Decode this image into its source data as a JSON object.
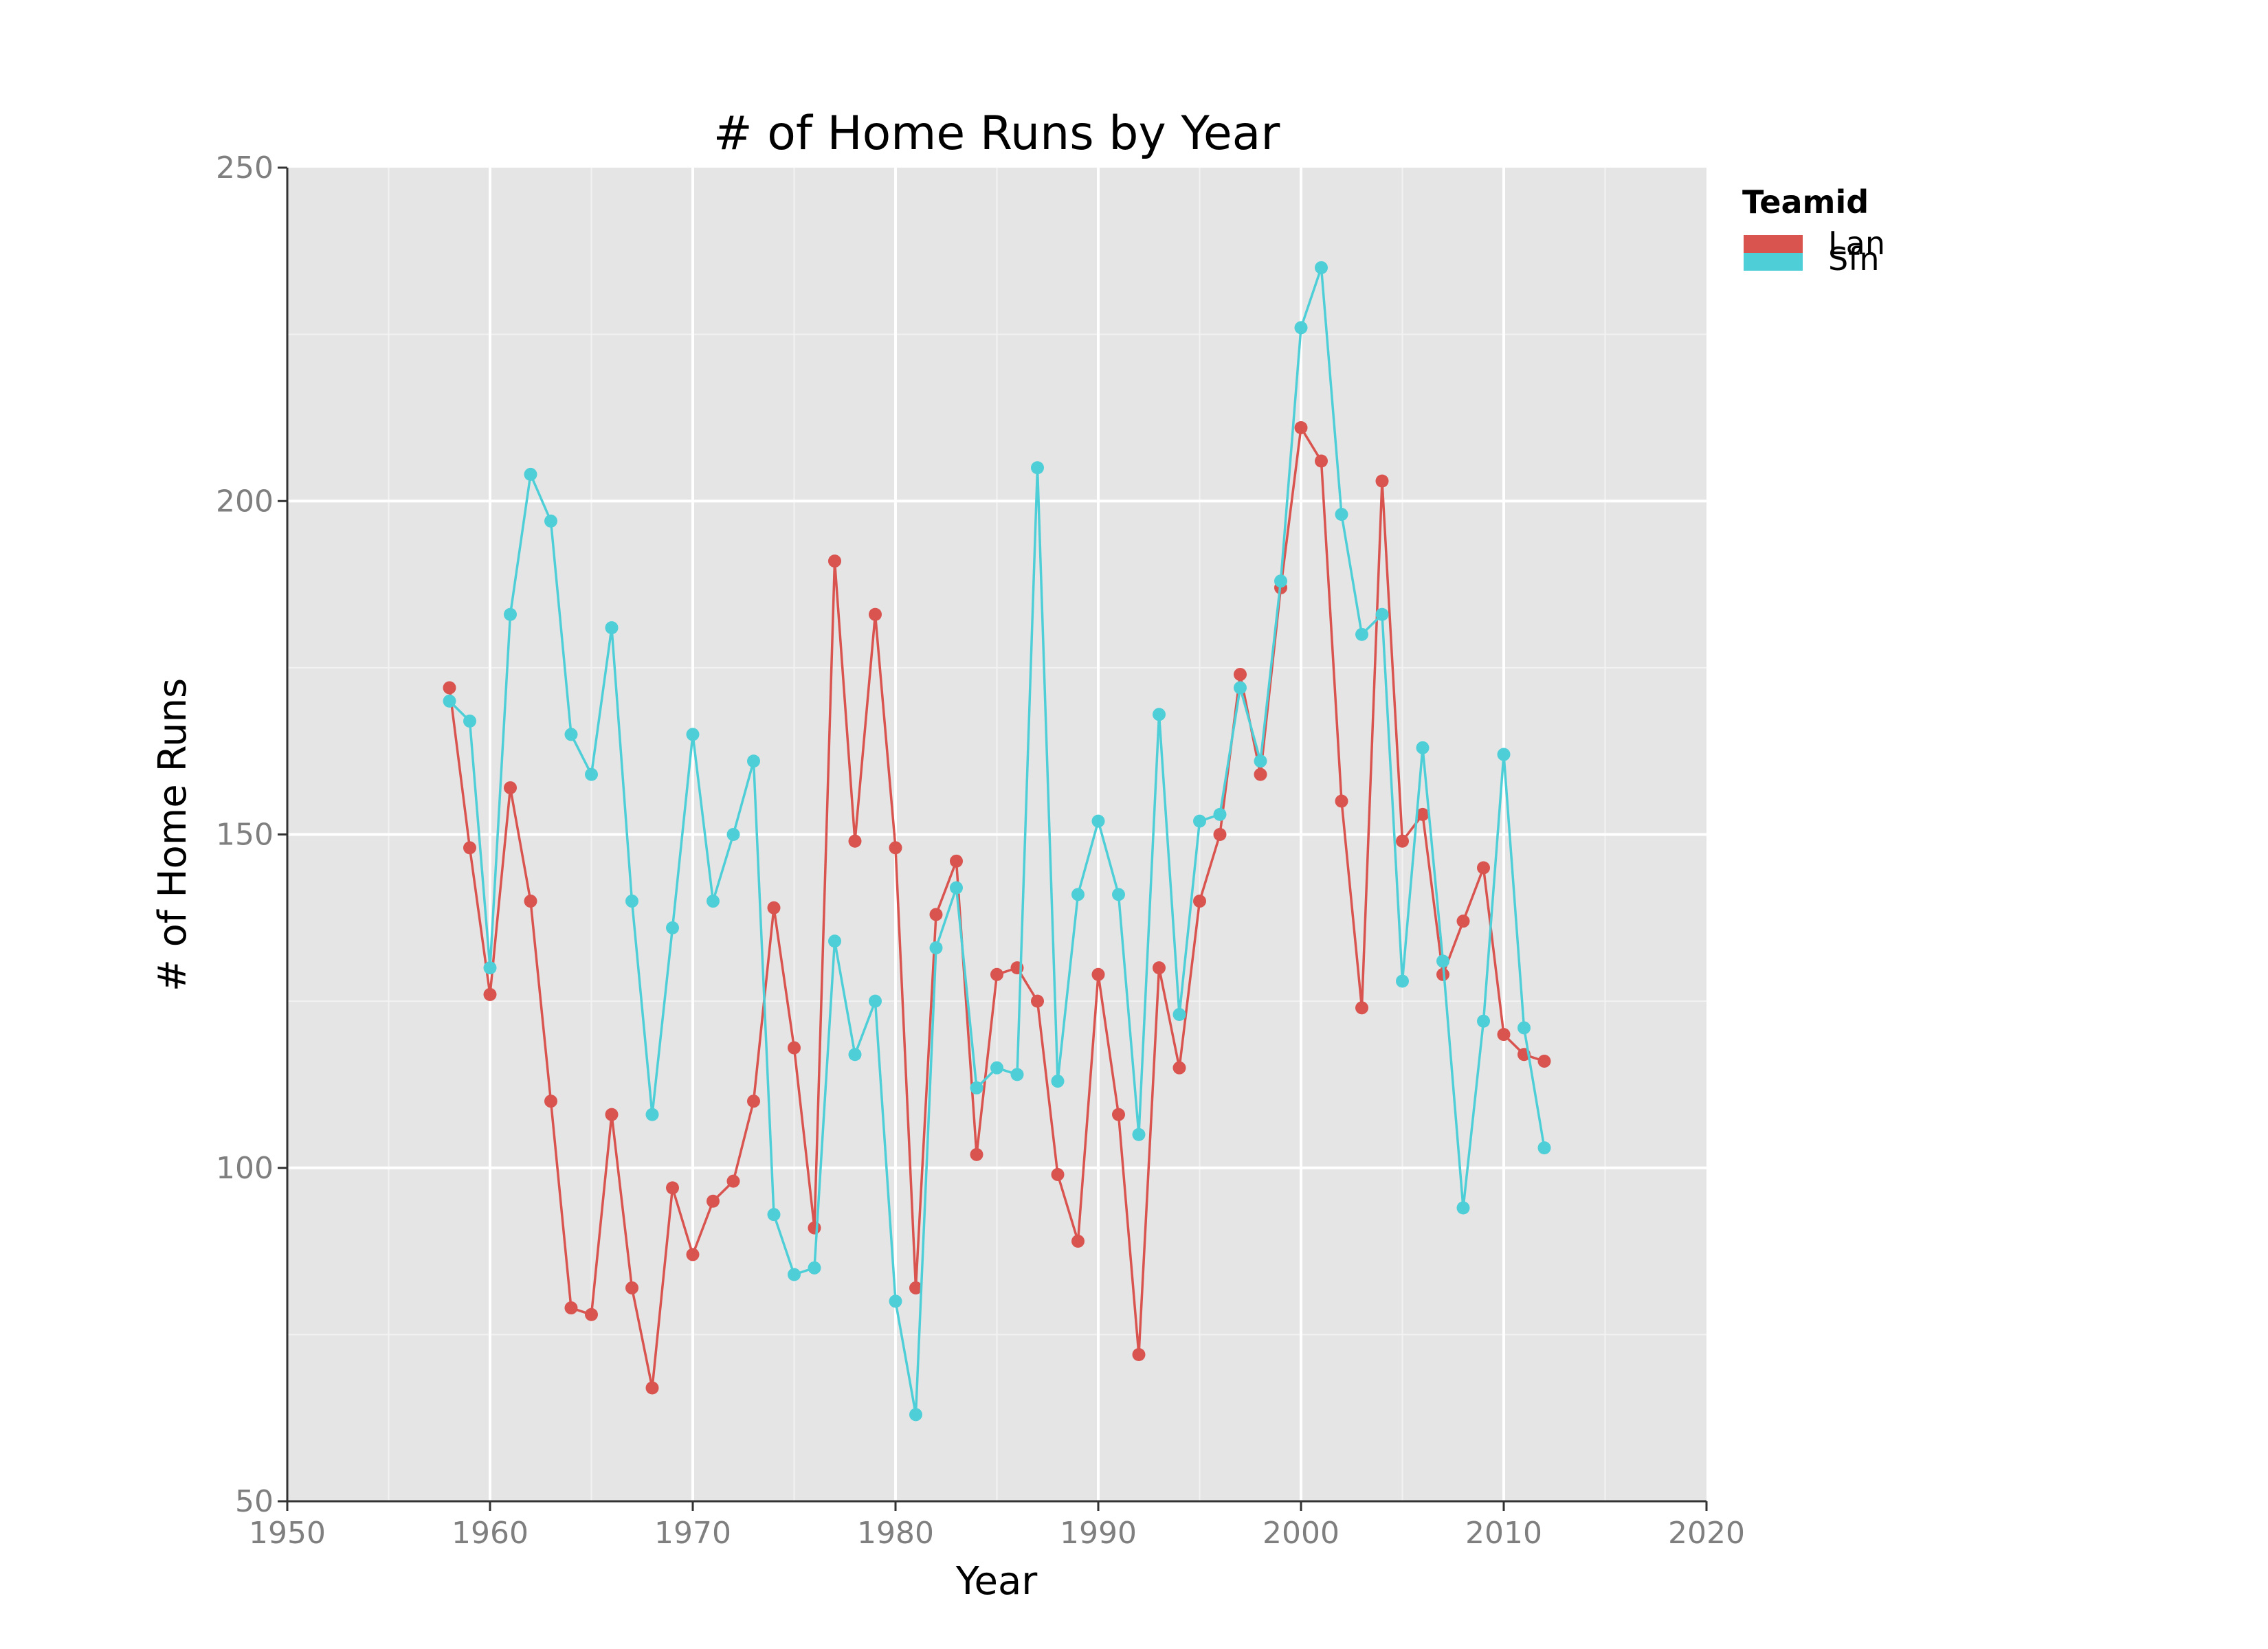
{
  "chart_data": {
    "type": "line",
    "title": "# of Home Runs by Year",
    "xlabel": "Year",
    "ylabel": "# of Home Runs",
    "xlim": [
      1950,
      2020
    ],
    "ylim": [
      50,
      250
    ],
    "xticks": [
      "1950",
      "1960",
      "1970",
      "1980",
      "1990",
      "2000",
      "2010",
      "2020"
    ],
    "yticks": [
      "50",
      "100",
      "150",
      "200",
      "250"
    ],
    "grid": true,
    "legend": {
      "title": "Teamid",
      "position": "right"
    },
    "series": [
      {
        "name": "Lan",
        "color": "#d9534f",
        "x": [
          1958,
          1959,
          1960,
          1961,
          1962,
          1963,
          1964,
          1965,
          1966,
          1967,
          1968,
          1969,
          1970,
          1971,
          1972,
          1973,
          1974,
          1975,
          1976,
          1977,
          1978,
          1979,
          1980,
          1981,
          1982,
          1983,
          1984,
          1985,
          1986,
          1987,
          1988,
          1989,
          1990,
          1991,
          1992,
          1993,
          1994,
          1995,
          1996,
          1997,
          1998,
          1999,
          2000,
          2001,
          2002,
          2003,
          2004,
          2005,
          2006,
          2007,
          2008,
          2009,
          2010,
          2011,
          2012
        ],
        "y": [
          172,
          148,
          126,
          157,
          140,
          110,
          79,
          78,
          108,
          82,
          67,
          97,
          87,
          95,
          98,
          110,
          139,
          118,
          91,
          191,
          149,
          183,
          148,
          82,
          138,
          146,
          102,
          129,
          130,
          125,
          99,
          89,
          129,
          108,
          72,
          130,
          115,
          140,
          150,
          174,
          159,
          187,
          211,
          206,
          155,
          124,
          203,
          149,
          153,
          129,
          137,
          145,
          120,
          117,
          116
        ]
      },
      {
        "name": "Sfn",
        "color": "#4ecfd8",
        "x": [
          1958,
          1959,
          1960,
          1961,
          1962,
          1963,
          1964,
          1965,
          1966,
          1967,
          1968,
          1969,
          1970,
          1971,
          1972,
          1973,
          1974,
          1975,
          1976,
          1977,
          1978,
          1979,
          1980,
          1981,
          1982,
          1983,
          1984,
          1985,
          1986,
          1987,
          1988,
          1989,
          1990,
          1991,
          1992,
          1993,
          1994,
          1995,
          1996,
          1997,
          1998,
          1999,
          2000,
          2001,
          2002,
          2003,
          2004,
          2005,
          2006,
          2007,
          2008,
          2009,
          2010,
          2011,
          2012
        ],
        "y": [
          170,
          167,
          130,
          183,
          204,
          197,
          165,
          159,
          181,
          140,
          108,
          136,
          165,
          140,
          150,
          161,
          93,
          84,
          85,
          134,
          117,
          125,
          80,
          63,
          133,
          142,
          112,
          115,
          114,
          205,
          113,
          141,
          152,
          141,
          105,
          168,
          123,
          152,
          153,
          172,
          161,
          188,
          226,
          235,
          198,
          180,
          183,
          128,
          163,
          131,
          94,
          122,
          162,
          121,
          103
        ]
      }
    ]
  }
}
